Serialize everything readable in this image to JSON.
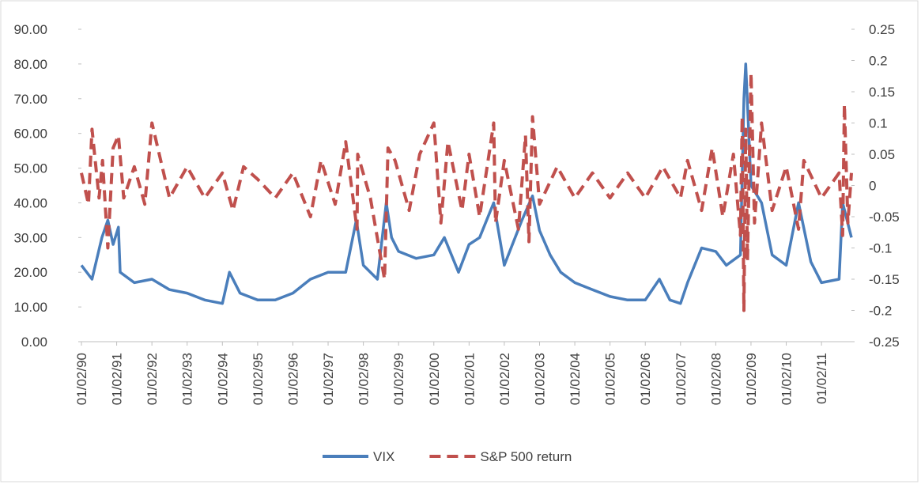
{
  "chart_data": {
    "type": "line",
    "xlim": [
      1990,
      2011.85
    ],
    "xticks": [
      {
        "value": 1990,
        "label": "01/02/90"
      },
      {
        "value": 1991,
        "label": "01/02/91"
      },
      {
        "value": 1992,
        "label": "01/02/92"
      },
      {
        "value": 1993,
        "label": "01/02/93"
      },
      {
        "value": 1994,
        "label": "01/02/94"
      },
      {
        "value": 1995,
        "label": "01/02/95"
      },
      {
        "value": 1996,
        "label": "01/02/96"
      },
      {
        "value": 1997,
        "label": "01/02/97"
      },
      {
        "value": 1998,
        "label": "01/02/98"
      },
      {
        "value": 1999,
        "label": "01/02/99"
      },
      {
        "value": 2000,
        "label": "01/02/00"
      },
      {
        "value": 2001,
        "label": "01/02/01"
      },
      {
        "value": 2002,
        "label": "01/02/02"
      },
      {
        "value": 2003,
        "label": "01/02/03"
      },
      {
        "value": 2004,
        "label": "01/02/04"
      },
      {
        "value": 2005,
        "label": "01/02/05"
      },
      {
        "value": 2006,
        "label": "01/02/06"
      },
      {
        "value": 2007,
        "label": "01/02/07"
      },
      {
        "value": 2008,
        "label": "01/02/08"
      },
      {
        "value": 2009,
        "label": "01/02/09"
      },
      {
        "value": 2010,
        "label": "01/02/10"
      },
      {
        "value": 2011,
        "label": "01/02/11"
      }
    ],
    "ylim": [
      0,
      90
    ],
    "yticks": [
      {
        "value": 0,
        "label": "0.00"
      },
      {
        "value": 10,
        "label": "10.00"
      },
      {
        "value": 20,
        "label": "20.00"
      },
      {
        "value": 30,
        "label": "30.00"
      },
      {
        "value": 40,
        "label": "40.00"
      },
      {
        "value": 50,
        "label": "50.00"
      },
      {
        "value": 60,
        "label": "60.00"
      },
      {
        "value": 70,
        "label": "70.00"
      },
      {
        "value": 80,
        "label": "80.00"
      },
      {
        "value": 90,
        "label": "90.00"
      }
    ],
    "y2lim": [
      -0.25,
      0.25
    ],
    "y2ticks": [
      -0.25,
      -0.2,
      -0.15,
      -0.1,
      -0.05,
      0,
      0.05,
      0.1,
      0.15,
      0.2,
      0.25
    ],
    "legend": "bottom",
    "series": [
      {
        "name": "VIX",
        "color": "#4a7ebb",
        "style": "solid",
        "x": [
          1990.0,
          1990.3,
          1990.58,
          1990.75,
          1990.9,
          1991.05,
          1991.1,
          1991.5,
          1992.0,
          1992.5,
          1993.0,
          1993.5,
          1994.0,
          1994.2,
          1994.5,
          1995.0,
          1995.5,
          1996.0,
          1996.5,
          1997.0,
          1997.5,
          1997.8,
          1998.0,
          1998.4,
          1998.65,
          1998.8,
          1999.0,
          1999.5,
          2000.0,
          2000.3,
          2000.7,
          2001.0,
          2001.3,
          2001.7,
          2002.0,
          2002.5,
          2002.8,
          2003.0,
          2003.3,
          2003.6,
          2004.0,
          2004.5,
          2005.0,
          2005.5,
          2006.0,
          2006.4,
          2006.7,
          2007.0,
          2007.2,
          2007.6,
          2008.0,
          2008.3,
          2008.7,
          2008.8,
          2008.85,
          2009.0,
          2009.3,
          2009.6,
          2010.0,
          2010.35,
          2010.7,
          2011.0,
          2011.5,
          2011.6,
          2011.85
        ],
        "values": [
          22,
          18,
          30,
          35,
          28,
          33,
          20,
          17,
          18,
          15,
          14,
          12,
          11,
          20,
          14,
          12,
          12,
          14,
          18,
          20,
          20,
          35,
          22,
          18,
          40,
          30,
          26,
          24,
          25,
          30,
          20,
          28,
          30,
          40,
          22,
          35,
          42,
          32,
          25,
          20,
          17,
          15,
          13,
          12,
          12,
          18,
          12,
          11,
          17,
          27,
          26,
          22,
          25,
          70,
          80,
          45,
          40,
          25,
          22,
          40,
          23,
          17,
          18,
          40,
          30
        ]
      },
      {
        "name": "S&P 500 return",
        "color": "#c0504d",
        "style": "dashed",
        "axis": "y2",
        "x": [
          1990.0,
          1990.2,
          1990.3,
          1990.5,
          1990.6,
          1990.75,
          1990.9,
          1991.05,
          1991.2,
          1991.5,
          1991.8,
          1992.0,
          1992.5,
          1993.0,
          1993.5,
          1994.0,
          1994.3,
          1994.6,
          1995.0,
          1995.5,
          1996.0,
          1996.5,
          1996.8,
          1997.2,
          1997.5,
          1997.82,
          1997.84,
          1998.2,
          1998.6,
          1998.7,
          1998.9,
          1999.3,
          1999.6,
          2000.0,
          2000.2,
          2000.4,
          2000.8,
          2001.0,
          2001.3,
          2001.7,
          2001.75,
          2002.0,
          2002.4,
          2002.6,
          2002.7,
          2002.8,
          2003.0,
          2003.5,
          2004.0,
          2004.5,
          2005.0,
          2005.5,
          2006.0,
          2006.5,
          2007.0,
          2007.2,
          2007.6,
          2007.9,
          2008.2,
          2008.5,
          2008.7,
          2008.75,
          2008.8,
          2008.85,
          2008.9,
          2009.0,
          2009.1,
          2009.3,
          2009.6,
          2010.0,
          2010.35,
          2010.5,
          2011.0,
          2011.5,
          2011.6,
          2011.65,
          2011.75,
          2011.85
        ],
        "values": [
          0.02,
          -0.03,
          0.09,
          -0.02,
          0.04,
          -0.1,
          0.06,
          0.08,
          -0.02,
          0.03,
          -0.03,
          0.1,
          -0.02,
          0.03,
          -0.02,
          0.02,
          -0.04,
          0.03,
          0.01,
          -0.02,
          0.02,
          -0.05,
          0.04,
          -0.03,
          0.07,
          -0.07,
          0.05,
          -0.02,
          -0.15,
          0.06,
          0.04,
          -0.04,
          0.05,
          0.1,
          -0.06,
          0.07,
          -0.04,
          0.05,
          -0.05,
          0.1,
          -0.06,
          0.04,
          -0.07,
          0.08,
          -0.09,
          0.11,
          -0.03,
          0.03,
          -0.02,
          0.02,
          -0.02,
          0.02,
          -0.02,
          0.03,
          -0.02,
          0.04,
          -0.04,
          0.06,
          -0.05,
          0.05,
          -0.08,
          0.11,
          -0.2,
          0.09,
          -0.12,
          0.18,
          -0.06,
          0.1,
          -0.04,
          0.03,
          -0.07,
          0.04,
          -0.02,
          0.02,
          -0.08,
          0.13,
          -0.06,
          0.02
        ]
      }
    ]
  }
}
